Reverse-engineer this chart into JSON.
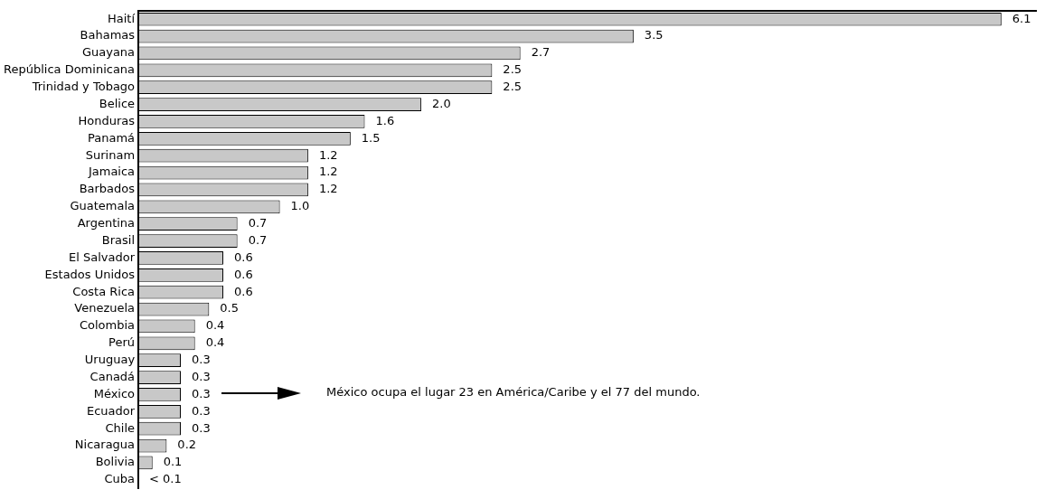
{
  "chart_data": {
    "type": "bar",
    "orientation": "horizontal",
    "categories": [
      "Haití",
      "Bahamas",
      "Guayana",
      "República Dominicana",
      "Trinidad y Tobago",
      "Belice",
      "Honduras",
      "Panamá",
      "Surinam",
      "Jamaica",
      "Barbados",
      "Guatemala",
      "Argentina",
      "Brasil",
      "El Salvador",
      "Estados Unidos",
      "Costa Rica",
      "Venezuela",
      "Colombia",
      "Perú",
      "Uruguay",
      "Canadá",
      "México",
      "Ecuador",
      "Chile",
      "Nicaragua",
      "Bolivia",
      "Cuba"
    ],
    "values": [
      6.1,
      3.5,
      2.7,
      2.5,
      2.5,
      2.0,
      1.6,
      1.5,
      1.2,
      1.2,
      1.2,
      1.0,
      0.7,
      0.7,
      0.6,
      0.6,
      0.6,
      0.5,
      0.4,
      0.4,
      0.3,
      0.3,
      0.3,
      0.3,
      0.3,
      0.2,
      0.1,
      0
    ],
    "value_labels": [
      "6.1",
      "3.5",
      "2.7",
      "2.5",
      "2.5",
      "2.0",
      "1.6",
      "1.5",
      "1.2",
      "1.2",
      "1.2",
      "1.0",
      "0.7",
      "0.7",
      "0.6",
      "0.6",
      "0.6",
      "0.5",
      "0.4",
      "0.4",
      "0.3",
      "0.3",
      "0.3",
      "0.3",
      "0.3",
      "0.2",
      "0.1",
      "< 0.1"
    ],
    "color": "#c8c8c8",
    "grid": false,
    "legend": false,
    "annotations": [
      "México ocupa el lugar 23 en América/Caribe y el 77 del mundo."
    ]
  }
}
